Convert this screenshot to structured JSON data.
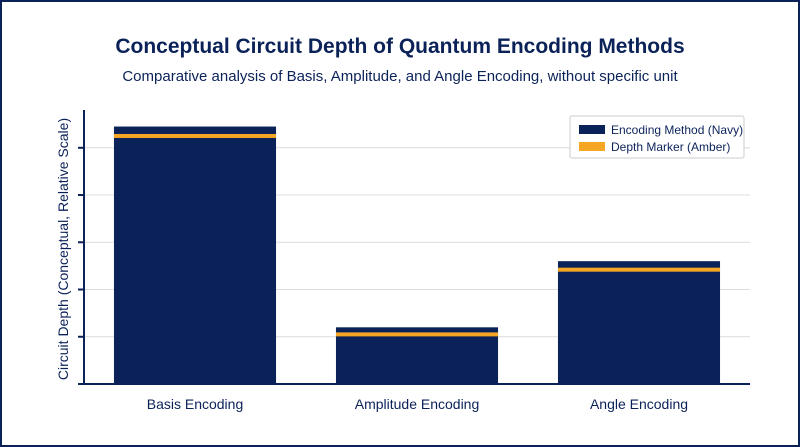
{
  "header": {
    "title": "Conceptual Circuit Depth of Quantum Encoding Methods",
    "subtitle": "Comparative analysis of Basis, Amplitude, and Angle Encoding, without specific unit"
  },
  "colors": {
    "navy": "#0b2259",
    "amber": "#f5a623",
    "grid": "#dcdcdc",
    "frame": "#0b2259"
  },
  "chart_data": {
    "type": "bar",
    "categories": [
      "Basis Encoding",
      "Amplitude Encoding",
      "Angle Encoding"
    ],
    "values": [
      5.45,
      1.2,
      2.6
    ],
    "marker_values": [
      5.25,
      1.05,
      2.42
    ],
    "ylabel": "Circuit Depth (Conceptual, Relative Scale)",
    "xlabel": "",
    "ylim": [
      0,
      5.8
    ],
    "yticks": [
      0,
      1,
      2,
      3,
      4,
      5
    ],
    "show_ytick_labels": false,
    "grid": true,
    "legend": {
      "position": "top-right",
      "entries": [
        {
          "label": "Encoding Method (Navy)",
          "color": "#0b2259"
        },
        {
          "label": "Depth Marker (Amber)",
          "color": "#f5a623"
        }
      ]
    }
  }
}
